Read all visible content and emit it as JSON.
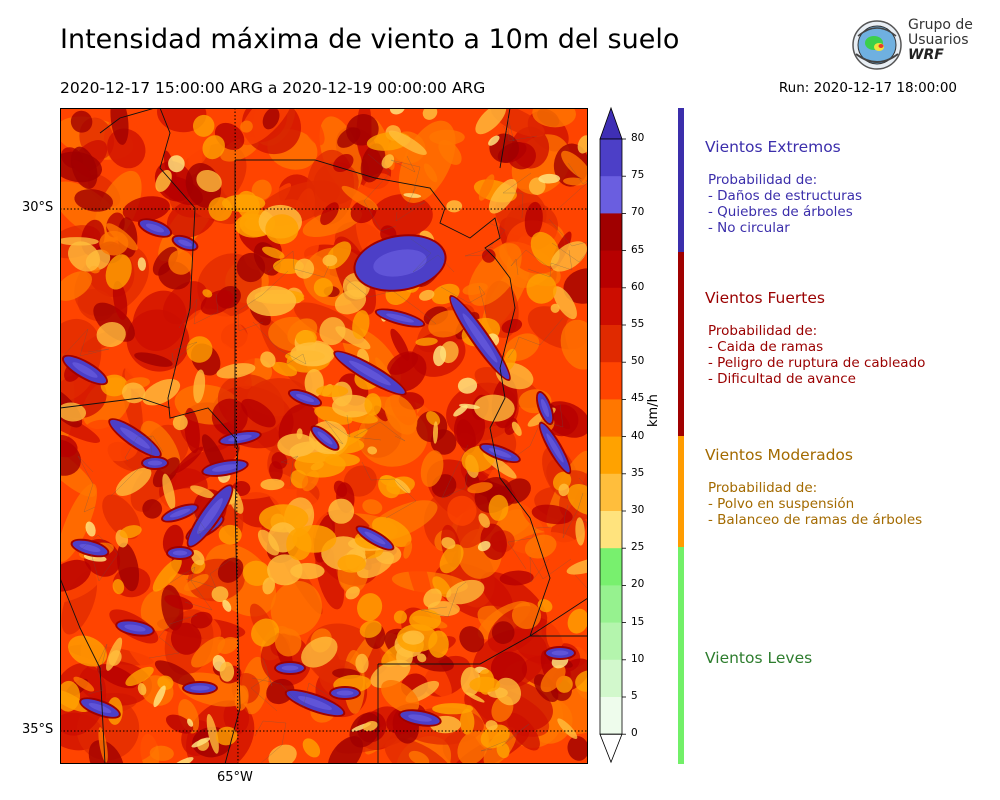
{
  "title": "Intensidad máxima de viento a 10m del suelo",
  "subtitle": "2020-12-17 15:00:00 ARG  a  2020-12-19 00:00:00 ARG",
  "run": "Run: 2020-12-17 18:00:00",
  "logo": {
    "line1": "Grupo de",
    "line2": "Usuarios",
    "line3": "WRF"
  },
  "map": {
    "lat_labels": [
      "30°S",
      "35°S"
    ],
    "lon_labels": [
      "65°W"
    ]
  },
  "colorbar": {
    "unit": "km/h",
    "ticks": [
      "80",
      "75",
      "70",
      "65",
      "60",
      "55",
      "50",
      "45",
      "40",
      "35",
      "30",
      "25",
      "20",
      "15",
      "10",
      "5",
      "0"
    ],
    "colors": [
      "#3f2fb5",
      "#4c3fc7",
      "#6a5ee0",
      "#a00000",
      "#b70000",
      "#cc0d00",
      "#e02a00",
      "#ff4400",
      "#ff7700",
      "#ffa200",
      "#ffbe3c",
      "#ffe37d",
      "#78f06e",
      "#96f28f",
      "#b4f5ad",
      "#d2f8cc",
      "#eefcec"
    ]
  },
  "legend": [
    {
      "title": "Vientos Extremos",
      "color": "#3b2eab",
      "lines": [
        "Probabilidad de:",
        "- Daños de estructuras",
        "- Quiebres de árboles",
        "- No circular"
      ]
    },
    {
      "title": "Vientos Fuertes",
      "color": "#9a0000",
      "lines": [
        "Probabilidad de:",
        "- Caida de ramas",
        "- Peligro de ruptura de cableado",
        "- Dificultad de avance"
      ]
    },
    {
      "title": "Vientos Moderados",
      "color": "#a36a00",
      "lines": [
        "Probabilidad de:",
        "- Polvo en suspensión",
        "- Balanceo de ramas de árboles"
      ]
    },
    {
      "title": "Vientos Leves",
      "color": "#2e7d2e",
      "lines": []
    }
  ]
}
